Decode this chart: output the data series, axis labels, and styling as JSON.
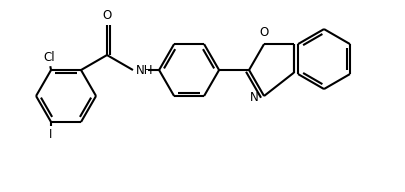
{
  "bg_color": "#ffffff",
  "line_color": "#000000",
  "atom_label_color": "#000000",
  "line_width": 1.5,
  "font_size": 8.5,
  "fig_width": 4.05,
  "fig_height": 1.92,
  "dpi": 100,
  "xlim": [
    0,
    10.5
  ],
  "ylim": [
    0,
    4.8
  ]
}
